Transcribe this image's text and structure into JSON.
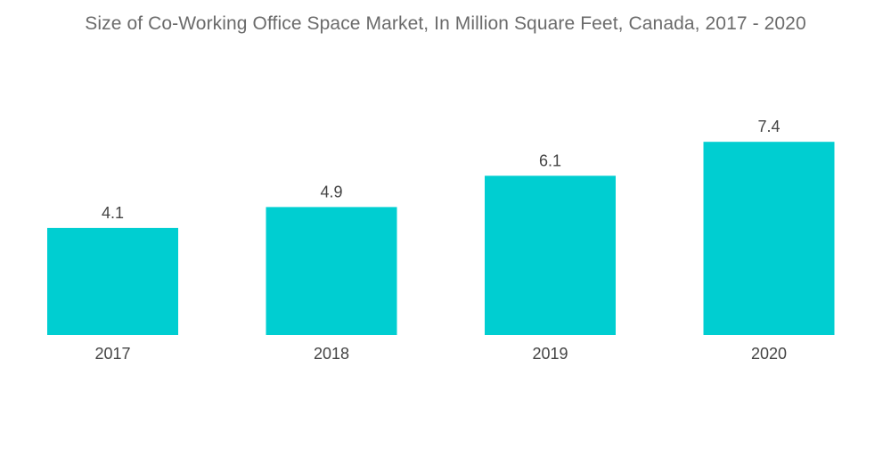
{
  "chart_data": {
    "type": "bar",
    "title": "Size of Co-Working Office Space Market, In Million Square Feet, Canada, 2017 - 2020",
    "categories": [
      "2017",
      "2018",
      "2019",
      "2020"
    ],
    "values": [
      4.1,
      4.9,
      6.1,
      7.4
    ],
    "xlabel": "",
    "ylabel": "",
    "ylim": [
      0,
      8.2
    ],
    "grid": false,
    "legend": "none",
    "colors": {
      "bar": "#00ced1"
    }
  }
}
